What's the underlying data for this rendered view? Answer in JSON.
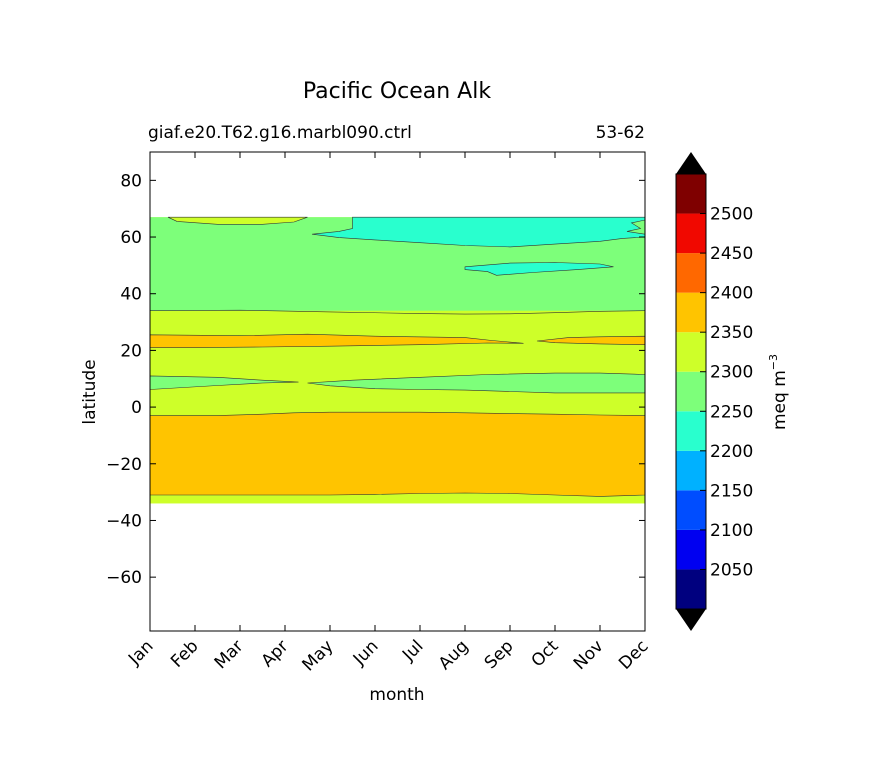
{
  "chart_data": {
    "type": "contour",
    "title": "Pacific Ocean Alk",
    "subtitle_left": "giaf.e20.T62.g16.marbl090.ctrl",
    "subtitle_right": "53-62",
    "xlabel": "month",
    "ylabel": "latitude",
    "x_ticks": [
      "Jan",
      "Feb",
      "Mar",
      "Apr",
      "May",
      "Jun",
      "Jul",
      "Aug",
      "Sep",
      "Oct",
      "Nov",
      "Dec"
    ],
    "y_ticks": [
      80,
      60,
      40,
      20,
      0,
      -20,
      -40,
      -60
    ],
    "y_tick_labels": [
      "80",
      "60",
      "40",
      "20",
      "0",
      "−20",
      "−40",
      "−60"
    ],
    "xlim": [
      1,
      12
    ],
    "ylim": [
      -79,
      90
    ],
    "data_lat_range": [
      -34,
      67
    ],
    "colorbar": {
      "label": "meq m",
      "label_sup": "−3",
      "levels": [
        2000,
        2050,
        2100,
        2150,
        2200,
        2250,
        2300,
        2350,
        2400,
        2450,
        2500,
        2550
      ],
      "tick_labels": [
        "2050",
        "2100",
        "2150",
        "2200",
        "2250",
        "2300",
        "2350",
        "2400",
        "2450",
        "2500"
      ],
      "colors": [
        "#00007f",
        "#0000f1",
        "#004dff",
        "#00b1ff",
        "#29ffce",
        "#7dff7a",
        "#ceff29",
        "#ffc400",
        "#ff6800",
        "#f10800",
        "#7f0000"
      ],
      "under_color": "#000000",
      "over_color": "#000000"
    },
    "regions": [
      {
        "level": "2300-2350",
        "color": "#ceff29",
        "lat_range": [
          -34,
          -31
        ]
      },
      {
        "level": "2350-2400",
        "color": "#ffc400",
        "lat_range": [
          -31,
          -2
        ]
      },
      {
        "level": "2300-2350",
        "color": "#ceff29",
        "lat_range": [
          -2,
          34
        ]
      },
      {
        "level": "2350-2400",
        "color": "#ffc400",
        "lat_range": [
          22,
          25
        ]
      },
      {
        "level": "2250-2300",
        "color": "#7dff7a",
        "lat_range": [
          6,
          11
        ]
      },
      {
        "level": "2250-2300",
        "color": "#7dff7a",
        "lat_range": [
          34,
          67
        ]
      },
      {
        "level": "2200-2250",
        "color": "#29ffce",
        "lat_range": [
          56,
          67
        ]
      },
      {
        "level": "2200-2250",
        "color": "#29ffce",
        "lat_range": [
          46,
          51
        ]
      }
    ]
  }
}
